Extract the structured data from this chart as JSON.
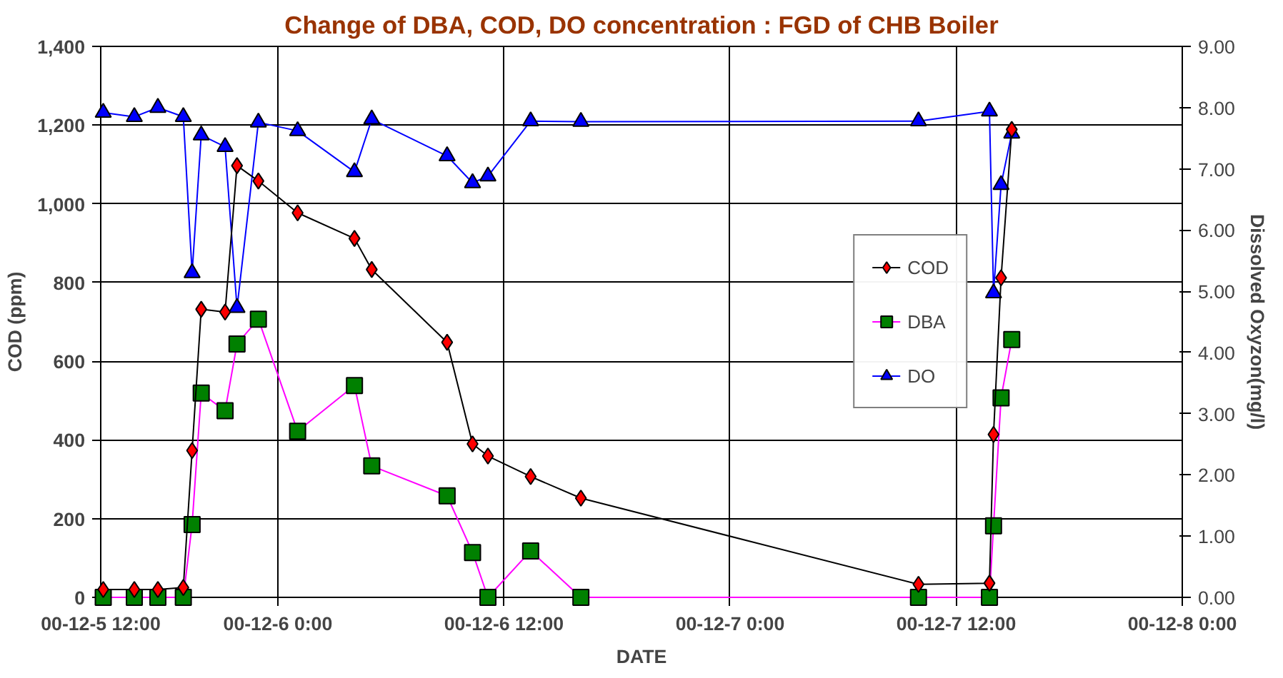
{
  "chart_data": {
    "type": "line",
    "title": "Change of DBA, COD, DO concentration : FGD of CHB Boiler",
    "xlabel": "DATE",
    "ylabel": "COD (ppm)",
    "y2label": "Dissolved Oxyzon(mg/l)",
    "x": [
      "2000-12-05T14:44",
      "2000-12-05T16:23",
      "2000-12-05T17:38",
      "2000-12-05T18:59",
      "2000-12-05T19:27",
      "2000-12-05T19:56",
      "2000-12-05T21:12",
      "2000-12-05T21:50",
      "2000-12-05T22:58",
      "2000-12-06T01:03",
      "2000-12-06T04:04",
      "2000-12-06T04:59",
      "2000-12-06T08:59",
      "2000-12-06T10:20",
      "2000-12-06T11:09",
      "2000-12-06T13:25",
      "2000-12-06T16:05",
      "2000-12-07T10:00",
      "2000-12-07T13:46",
      "2000-12-07T13:59",
      "2000-12-07T14:23",
      "2000-12-07T14:57"
    ],
    "series": [
      {
        "name": "COD",
        "color": "#ff0000",
        "marker": "diamond",
        "values": [
          20,
          20,
          20,
          25,
          373,
          732,
          725,
          1097,
          1058,
          977,
          912,
          833,
          648,
          390,
          359,
          307,
          252,
          33,
          36,
          414,
          812,
          1189
        ]
      },
      {
        "name": "DBA",
        "color": "#008000",
        "marker": "square",
        "values": [
          0,
          0,
          0,
          0,
          185,
          519,
          474,
          644,
          707,
          422,
          538,
          334,
          258,
          114,
          0,
          118,
          0,
          0,
          0,
          182,
          507,
          655
        ]
      },
      {
        "name": "DO",
        "color": "#0000ff",
        "marker": "triangle",
        "axis": "y2",
        "values": [
          7.92,
          7.85,
          8.0,
          7.85,
          5.3,
          7.55,
          7.36,
          4.73,
          7.76,
          7.62,
          6.95,
          7.81,
          7.21,
          6.77,
          6.88,
          7.78,
          7.77,
          7.78,
          7.94,
          4.97,
          6.74,
          7.58
        ]
      }
    ],
    "xlim": [
      "2000-12-05T14:36",
      "2000-12-08T00:00"
    ],
    "xticks": [
      {
        "value": "2000-12-05T14:36",
        "label": "00-12-5 12:00"
      },
      {
        "value": "2000-12-06T00:00",
        "label": "00-12-6 0:00"
      },
      {
        "value": "2000-12-06T12:00",
        "label": "00-12-6 12:00"
      },
      {
        "value": "2000-12-07T00:00",
        "label": "00-12-7 0:00"
      },
      {
        "value": "2000-12-07T12:00",
        "label": "00-12-7 12:00"
      },
      {
        "value": "2000-12-08T00:00",
        "label": "00-12-8 0:00"
      }
    ],
    "ylim": [
      0,
      1400
    ],
    "yticks": [
      0,
      200,
      400,
      600,
      800,
      {
        "value": 1000,
        "label": "1,000"
      },
      {
        "value": 1200,
        "label": "1,200"
      },
      {
        "value": 1400,
        "label": "1,400"
      }
    ],
    "y2lim": [
      0,
      9
    ],
    "y2ticks": [
      {
        "value": 0,
        "label": "0.00"
      },
      {
        "value": 1,
        "label": "1.00"
      },
      {
        "value": 2,
        "label": "2.00"
      },
      {
        "value": 3,
        "label": "3.00"
      },
      {
        "value": 4,
        "label": "4.00"
      },
      {
        "value": 5,
        "label": "5.00"
      },
      {
        "value": 6,
        "label": "6.00"
      },
      {
        "value": 7,
        "label": "7.00"
      },
      {
        "value": 8,
        "label": "8.00"
      },
      {
        "value": 9,
        "label": "9.00"
      }
    ],
    "grid": true,
    "legend": "right"
  }
}
